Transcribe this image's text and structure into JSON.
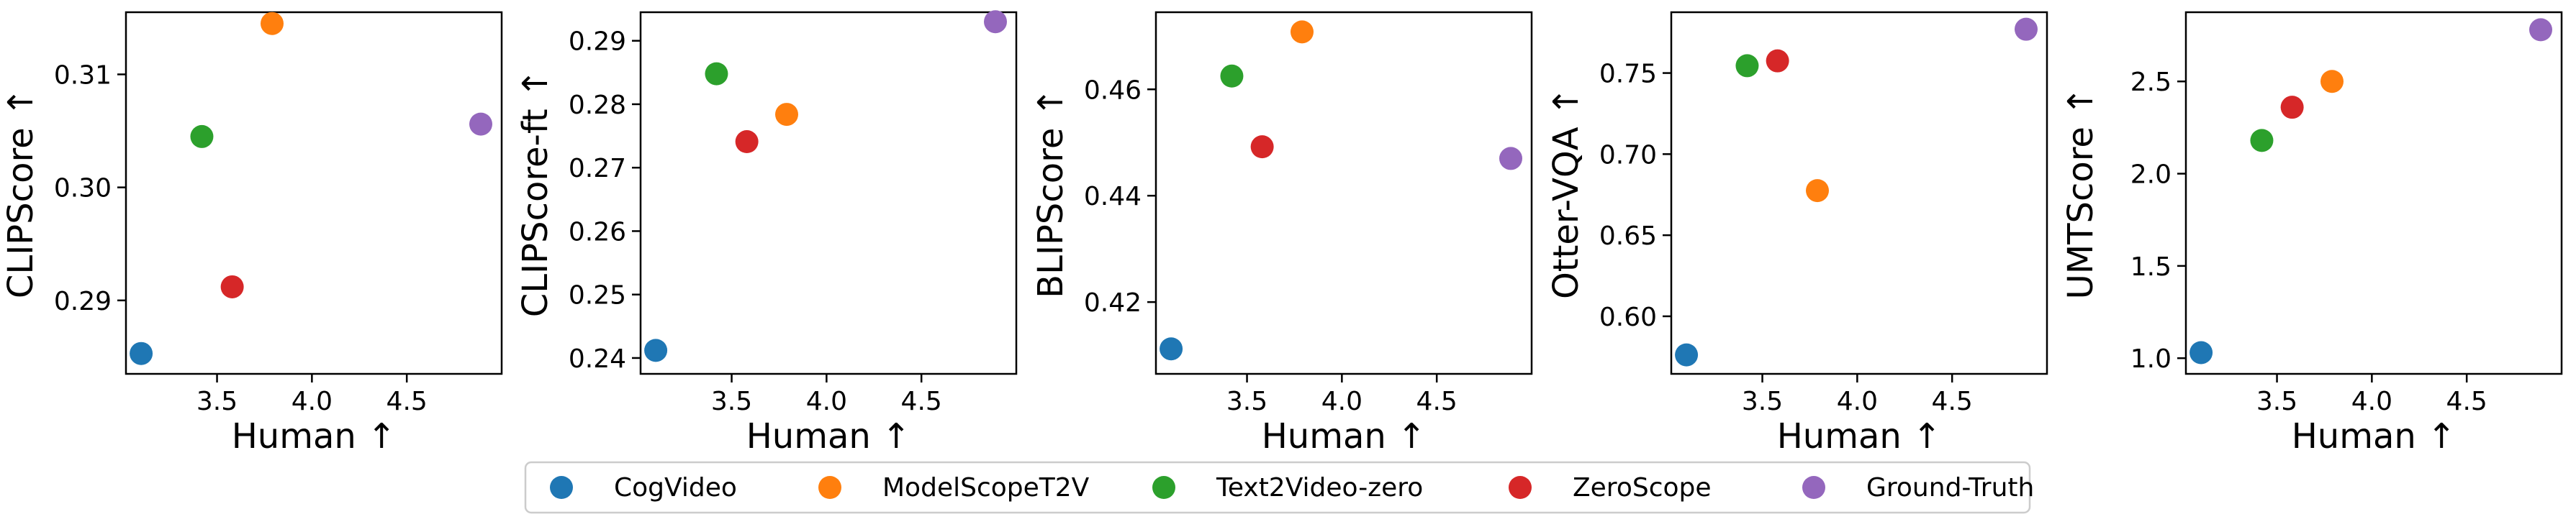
{
  "series_meta": [
    {
      "name": "CogVideo",
      "color": "#1f77b4"
    },
    {
      "name": "ModelScopeT2V",
      "color": "#ff7f0e"
    },
    {
      "name": "Text2Video-zero",
      "color": "#2ca02c"
    },
    {
      "name": "ZeroScope",
      "color": "#d62728"
    },
    {
      "name": "Ground-Truth",
      "color": "#9467bd"
    }
  ],
  "legend": {
    "placement": "bottom-center"
  },
  "chart_data": [
    {
      "type": "scatter",
      "xlabel": "Human ↑",
      "ylabel": "CLIPScore ↑",
      "xlim": [
        3.02,
        5.0
      ],
      "ylim": [
        0.2835,
        0.3155
      ],
      "xticks": [
        "4.0",
        "3.5",
        "4.5"
      ],
      "xtick_values": [
        4.0,
        3.5,
        4.5
      ],
      "yticks": [
        "0.29",
        "0.30",
        "0.31"
      ],
      "ytick_values": [
        0.29,
        0.3,
        0.31
      ],
      "points": [
        {
          "series": "CogVideo",
          "x": 3.1,
          "y": 0.2853
        },
        {
          "series": "ModelScopeT2V",
          "x": 3.79,
          "y": 0.3145
        },
        {
          "series": "Text2Video-zero",
          "x": 3.42,
          "y": 0.3045
        },
        {
          "series": "ZeroScope",
          "x": 3.58,
          "y": 0.2912
        },
        {
          "series": "Ground-Truth",
          "x": 4.89,
          "y": 0.3056
        }
      ]
    },
    {
      "type": "scatter",
      "xlabel": "Human ↑",
      "ylabel": "CLIPScore-ft ↑",
      "xlim": [
        3.02,
        5.0
      ],
      "ylim": [
        0.2375,
        0.2945
      ],
      "xticks": [
        "3.5",
        "4.0",
        "4.5"
      ],
      "xtick_values": [
        3.5,
        4.0,
        4.5
      ],
      "yticks": [
        "0.24",
        "0.25",
        "0.26",
        "0.27",
        "0.28",
        "0.29"
      ],
      "ytick_values": [
        0.24,
        0.25,
        0.26,
        0.27,
        0.28,
        0.29
      ],
      "points": [
        {
          "series": "CogVideo",
          "x": 3.1,
          "y": 0.2412
        },
        {
          "series": "ModelScopeT2V",
          "x": 3.79,
          "y": 0.2784
        },
        {
          "series": "Text2Video-zero",
          "x": 3.42,
          "y": 0.2848
        },
        {
          "series": "ZeroScope",
          "x": 3.58,
          "y": 0.2741
        },
        {
          "series": "Ground-Truth",
          "x": 4.89,
          "y": 0.293
        }
      ]
    },
    {
      "type": "scatter",
      "xlabel": "Human ↑",
      "ylabel": "BLIPScore ↑",
      "xlim": [
        3.02,
        5.0
      ],
      "ylim": [
        0.4065,
        0.4745
      ],
      "xticks": [
        "3.5",
        "4.0",
        "4.5"
      ],
      "xtick_values": [
        3.5,
        4.0,
        4.5
      ],
      "yticks": [
        "0.42",
        "0.44",
        "0.46"
      ],
      "ytick_values": [
        0.42,
        0.44,
        0.46
      ],
      "points": [
        {
          "series": "CogVideo",
          "x": 3.1,
          "y": 0.4112
        },
        {
          "series": "ModelScopeT2V",
          "x": 3.79,
          "y": 0.4708
        },
        {
          "series": "Text2Video-zero",
          "x": 3.42,
          "y": 0.4625
        },
        {
          "series": "ZeroScope",
          "x": 3.58,
          "y": 0.4492
        },
        {
          "series": "Ground-Truth",
          "x": 4.89,
          "y": 0.447
        }
      ]
    },
    {
      "type": "scatter",
      "xlabel": "Human ↑",
      "ylabel": "Otter-VQA ↑",
      "xlim": [
        3.02,
        5.0
      ],
      "ylim": [
        0.5645,
        0.7875
      ],
      "xticks": [
        "3.5",
        "4.0",
        "4.5"
      ],
      "xtick_values": [
        3.5,
        4.0,
        4.5
      ],
      "yticks": [
        "0.60",
        "0.65",
        "0.70",
        "0.75"
      ],
      "ytick_values": [
        0.6,
        0.65,
        0.7,
        0.75
      ],
      "points": [
        {
          "series": "CogVideo",
          "x": 3.1,
          "y": 0.5762
        },
        {
          "series": "ModelScopeT2V",
          "x": 3.79,
          "y": 0.6775
        },
        {
          "series": "Text2Video-zero",
          "x": 3.42,
          "y": 0.7545
        },
        {
          "series": "ZeroScope",
          "x": 3.58,
          "y": 0.7575
        },
        {
          "series": "Ground-Truth",
          "x": 4.89,
          "y": 0.777
        }
      ]
    },
    {
      "type": "scatter",
      "xlabel": "Human ↑",
      "ylabel": "UMTScore ↑",
      "xlim": [
        3.02,
        5.0
      ],
      "ylim": [
        0.915,
        2.875
      ],
      "xticks": [
        "3.5",
        "4.0",
        "4.5"
      ],
      "xtick_values": [
        3.5,
        4.0,
        4.5
      ],
      "yticks": [
        "1.0",
        "1.5",
        "2.0",
        "2.5"
      ],
      "ytick_values": [
        1.0,
        1.5,
        2.0,
        2.5
      ],
      "points": [
        {
          "series": "CogVideo",
          "x": 3.1,
          "y": 1.03
        },
        {
          "series": "ModelScopeT2V",
          "x": 3.79,
          "y": 2.5
        },
        {
          "series": "Text2Video-zero",
          "x": 3.42,
          "y": 2.18
        },
        {
          "series": "ZeroScope",
          "x": 3.58,
          "y": 2.36
        },
        {
          "series": "Ground-Truth",
          "x": 4.89,
          "y": 2.78
        }
      ]
    }
  ]
}
